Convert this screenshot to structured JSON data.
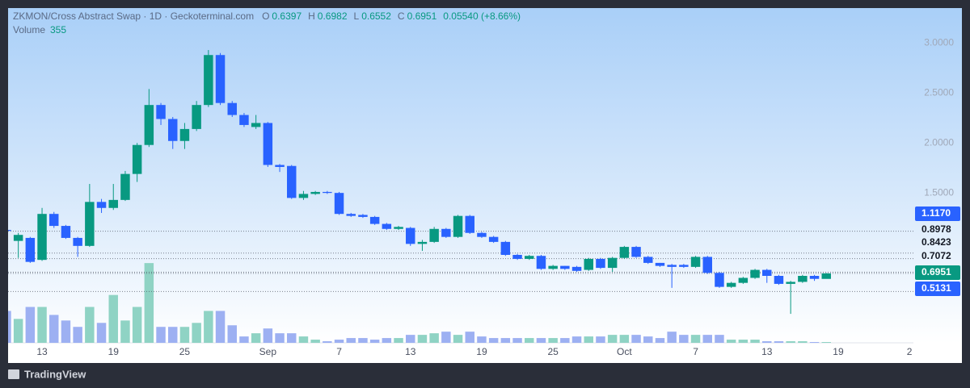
{
  "chart_data": {
    "type": "candlestick",
    "title": "ZKMON/Cross Abstract Swap · 1D · Geckoterminal.com",
    "legend": [
      {
        "key": "O",
        "value": "0.6397"
      },
      {
        "key": "H",
        "value": "0.6982"
      },
      {
        "key": "L",
        "value": "0.6552"
      },
      {
        "key": "C",
        "value": "0.6951"
      },
      {
        "key": "",
        "value": "0.05540 (+8.66%)"
      }
    ],
    "volume_label": "Volume",
    "volume_value": "355",
    "up_color": "#089981",
    "down_color": "#2962ff",
    "volume_up_color": "#8fd3c4",
    "volume_down_color": "#9db0f2",
    "x": [
      0,
      1,
      2,
      3,
      4,
      5,
      6,
      7,
      8,
      9,
      10,
      11,
      12,
      13,
      14,
      15,
      16,
      17,
      18,
      19,
      20,
      21,
      22,
      23,
      24,
      25,
      26,
      27,
      28,
      29,
      30,
      31,
      32,
      33,
      34,
      35,
      36,
      37,
      38,
      39,
      40,
      41,
      42,
      43,
      44,
      45,
      46,
      47,
      48,
      49,
      50,
      51,
      52,
      53,
      54,
      55,
      56,
      57,
      58,
      59,
      60,
      61,
      62,
      63,
      64,
      65,
      66,
      67,
      68,
      69
    ],
    "open": [
      1.13,
      1.02,
      1.05,
      0.83,
      1.29,
      1.17,
      1.05,
      0.97,
      1.41,
      1.35,
      1.43,
      1.69,
      1.98,
      2.38,
      2.24,
      2.02,
      2.14,
      2.38,
      2.88,
      2.4,
      2.28,
      2.16,
      2.2,
      1.78,
      1.77,
      1.45,
      1.49,
      1.51,
      1.5,
      1.29,
      1.28,
      1.26,
      1.19,
      1.14,
      1.15,
      0.99,
      1.01,
      1.14,
      1.06,
      1.27,
      1.1,
      1.06,
      1.01,
      0.88,
      0.84,
      0.87,
      0.74,
      0.77,
      0.76,
      0.73,
      0.84,
      0.75,
      0.85,
      0.96,
      0.86,
      0.8,
      0.78,
      0.78,
      0.76,
      0.86,
      0.7,
      0.56,
      0.6,
      0.65,
      0.73,
      0.67,
      0.59,
      0.61,
      0.67,
      0.6397
    ],
    "high": [
      1.14,
      1.1,
      1.06,
      1.35,
      1.31,
      1.18,
      1.06,
      1.59,
      1.44,
      1.59,
      1.72,
      2.0,
      2.54,
      2.4,
      2.26,
      2.2,
      2.42,
      2.93,
      2.9,
      2.42,
      2.3,
      2.28,
      2.21,
      1.79,
      1.78,
      1.52,
      1.52,
      1.52,
      1.51,
      1.3,
      1.29,
      1.27,
      1.2,
      1.17,
      1.16,
      1.03,
      1.16,
      1.15,
      1.28,
      1.28,
      1.11,
      1.07,
      1.02,
      0.89,
      0.88,
      0.88,
      0.78,
      0.77,
      0.77,
      0.85,
      0.85,
      0.86,
      0.97,
      0.97,
      0.87,
      0.8,
      0.79,
      0.79,
      0.87,
      0.87,
      0.71,
      0.61,
      0.66,
      0.74,
      0.74,
      0.68,
      0.62,
      0.68,
      0.68,
      0.6982
    ],
    "low": [
      1.1,
      0.85,
      0.8,
      0.82,
      1.15,
      1.04,
      0.86,
      0.96,
      1.3,
      1.33,
      1.42,
      1.61,
      1.96,
      2.18,
      1.94,
      1.94,
      2.12,
      2.36,
      2.38,
      2.26,
      2.16,
      2.14,
      1.76,
      1.71,
      1.44,
      1.43,
      1.48,
      1.49,
      1.28,
      1.26,
      1.25,
      1.18,
      1.13,
      1.13,
      0.97,
      0.92,
      1.0,
      1.05,
      1.05,
      1.09,
      1.05,
      1.0,
      0.87,
      0.83,
      0.83,
      0.73,
      0.73,
      0.73,
      0.71,
      0.72,
      0.74,
      0.71,
      0.84,
      0.85,
      0.79,
      0.76,
      0.55,
      0.75,
      0.75,
      0.69,
      0.55,
      0.55,
      0.59,
      0.64,
      0.6,
      0.58,
      0.29,
      0.6,
      0.62,
      0.6552
    ],
    "close": [
      1.12,
      1.08,
      0.81,
      1.29,
      1.17,
      1.05,
      0.97,
      1.41,
      1.35,
      1.43,
      1.69,
      1.98,
      2.38,
      2.24,
      2.02,
      2.14,
      2.38,
      2.88,
      2.4,
      2.28,
      2.18,
      2.2,
      1.78,
      1.76,
      1.45,
      1.49,
      1.51,
      1.5,
      1.29,
      1.27,
      1.26,
      1.19,
      1.14,
      1.16,
      0.99,
      1.01,
      1.14,
      1.06,
      1.27,
      1.1,
      1.06,
      1.01,
      0.88,
      0.84,
      0.87,
      0.74,
      0.77,
      0.74,
      0.72,
      0.84,
      0.75,
      0.85,
      0.96,
      0.86,
      0.8,
      0.77,
      0.76,
      0.76,
      0.86,
      0.7,
      0.56,
      0.6,
      0.65,
      0.73,
      0.67,
      0.59,
      0.61,
      0.67,
      0.64,
      0.6951
    ],
    "volume": [
      14000,
      10500,
      15750,
      15750,
      12250,
      9800,
      7000,
      15750,
      8750,
      21000,
      9800,
      15750,
      35000,
      7000,
      7000,
      7000,
      8750,
      14000,
      14000,
      7700,
      2800,
      4200,
      6300,
      4200,
      4200,
      2800,
      1400,
      700,
      1400,
      2100,
      2100,
      1400,
      2100,
      2100,
      3500,
      3500,
      4200,
      4900,
      3500,
      4900,
      2800,
      2100,
      2100,
      2100,
      2100,
      2100,
      2100,
      2100,
      2800,
      2800,
      2800,
      3500,
      3500,
      3500,
      2800,
      2100,
      4900,
      3500,
      3500,
      3500,
      3500,
      1400,
      1400,
      1400,
      700,
      700,
      700,
      700,
      350,
      355
    ],
    "xlim": [
      0.14,
      76.33
    ],
    "xticks": [
      {
        "value": 3,
        "label": "13"
      },
      {
        "value": 9,
        "label": "19"
      },
      {
        "value": 15,
        "label": "25"
      },
      {
        "value": 22,
        "label": "Sep"
      },
      {
        "value": 28,
        "label": "7"
      },
      {
        "value": 34,
        "label": "13"
      },
      {
        "value": 40,
        "label": "19"
      },
      {
        "value": 46,
        "label": "25"
      },
      {
        "value": 52,
        "label": "Oct"
      },
      {
        "value": 58,
        "label": "7"
      },
      {
        "value": 64,
        "label": "13"
      },
      {
        "value": 70,
        "label": "19"
      },
      {
        "value": 76,
        "label": "2"
      }
    ],
    "ylim": [
      0,
      3.35
    ],
    "yticks": [
      {
        "value": 1.5,
        "label": "1.5000"
      },
      {
        "value": 2,
        "label": "2.0000"
      },
      {
        "value": 2.5,
        "label": "2.5000"
      },
      {
        "value": 3,
        "label": "3.0000"
      }
    ],
    "vlim": [
      0,
      40000
    ],
    "price_lines": [
      {
        "value": 1.117,
        "label": "1.1170",
        "box_color": "#2962ff"
      },
      {
        "value": 0.8978,
        "label": "0.8978"
      },
      {
        "value": 0.8423,
        "label": "0.8423"
      },
      {
        "value": 0.7072,
        "label": "0.7072"
      },
      {
        "value": 0.6951,
        "label": "0.6951",
        "box_color": "#089981"
      },
      {
        "value": 0.5131,
        "label": "0.5131",
        "box_color": "#2962ff"
      }
    ],
    "brand": "TradingView"
  }
}
